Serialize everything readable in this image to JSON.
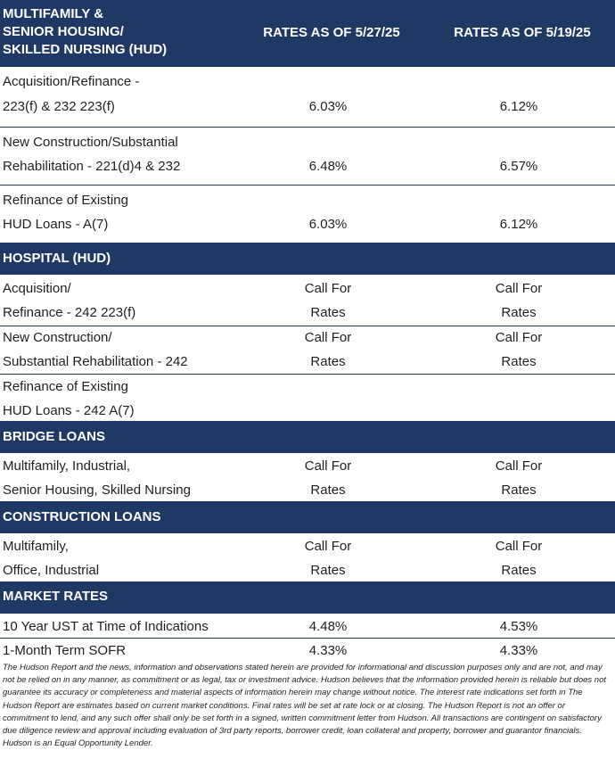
{
  "header": {
    "title_lines": [
      "MULTIFAMILY &",
      "SENIOR HOUSING/",
      "SKILLED NURSING (HUD)"
    ],
    "col1": "RATES AS OF 5/27/25",
    "col2": "RATES AS OF 5/19/25"
  },
  "sections": {
    "multifamily": {
      "rows": [
        {
          "label1": "Acquisition/Refinance -",
          "label2": "223(f) & 232 223(f)",
          "v1": "6.03%",
          "v2": "6.12%"
        },
        {
          "label1": "New Construction/Substantial",
          "label2": "Rehabilitation - 221(d)4 & 232",
          "v1": "6.48%",
          "v2": "6.57%"
        },
        {
          "label1": "Refinance of Existing",
          "label2": "HUD Loans - A(7)",
          "v1": "6.03%",
          "v2": "6.12%"
        }
      ]
    },
    "hospital": {
      "title": "HOSPITAL (HUD)",
      "rows": [
        {
          "label1": "Acquisition/",
          "label2": "Refinance - 242 223(f)",
          "v1a": "Call For",
          "v1b": "Rates",
          "v2a": "Call For",
          "v2b": "Rates"
        },
        {
          "label1": "New Construction/",
          "label2": "Substantial Rehabilitation - 242",
          "v1a": "Call For",
          "v1b": "Rates",
          "v2a": "Call For",
          "v2b": "Rates"
        },
        {
          "label1": "Refinance of Existing",
          "label2": "HUD Loans - 242 A(7)"
        }
      ]
    },
    "bridge": {
      "title": "BRIDGE LOANS",
      "rows": [
        {
          "label1": "Multifamily, Industrial,",
          "label2": "Senior Housing, Skilled Nursing",
          "v1a": "Call For",
          "v1b": "Rates",
          "v2a": "Call For",
          "v2b": "Rates"
        }
      ]
    },
    "construction": {
      "title": "CONSTRUCTION LOANS",
      "rows": [
        {
          "label1": "Multifamily,",
          "label2": "Office, Industrial",
          "v1a": "Call For",
          "v1b": "Rates",
          "v2a": "Call For",
          "v2b": "Rates"
        }
      ]
    },
    "market": {
      "title": "MARKET RATES",
      "rows": [
        {
          "label": "10 Year UST at Time of Indications",
          "v1": "4.48%",
          "v2": "4.53%"
        },
        {
          "label": "1-Month Term SOFR",
          "v1": "4.33%",
          "v2": "4.33%"
        }
      ]
    }
  },
  "disclaimer": "The Hudson Report and the news, information and observations stated herein are provided for informational and discussion purposes only and are not, and may not be relied on in any manner, as commitment or as legal, tax or investment advice. Hudson believes that the information provided herein is reliable but does not guarantee its accuracy or completeness and material aspects of information herein may change without notice. The interest rate indications set forth in The Hudson Report are estimates based on current market conditions. Final rates will be set at rate lock or at closing. The Hudson Report is not an offer or commitment to lend, and any such offer shall only be set forth in a signed, written commitment letter from Hudson. All transactions are contingent on satisfactory due diligence review and approval including evaluation of 3rd party reports, borrower credit, loan collateral and property, borrower and guarantor financials. Hudson is an Equal Opportunity Lender.",
  "colors": {
    "header_bg": "#1f3864",
    "header_text": "#ffffff",
    "body_text": "#1f1f1f"
  }
}
